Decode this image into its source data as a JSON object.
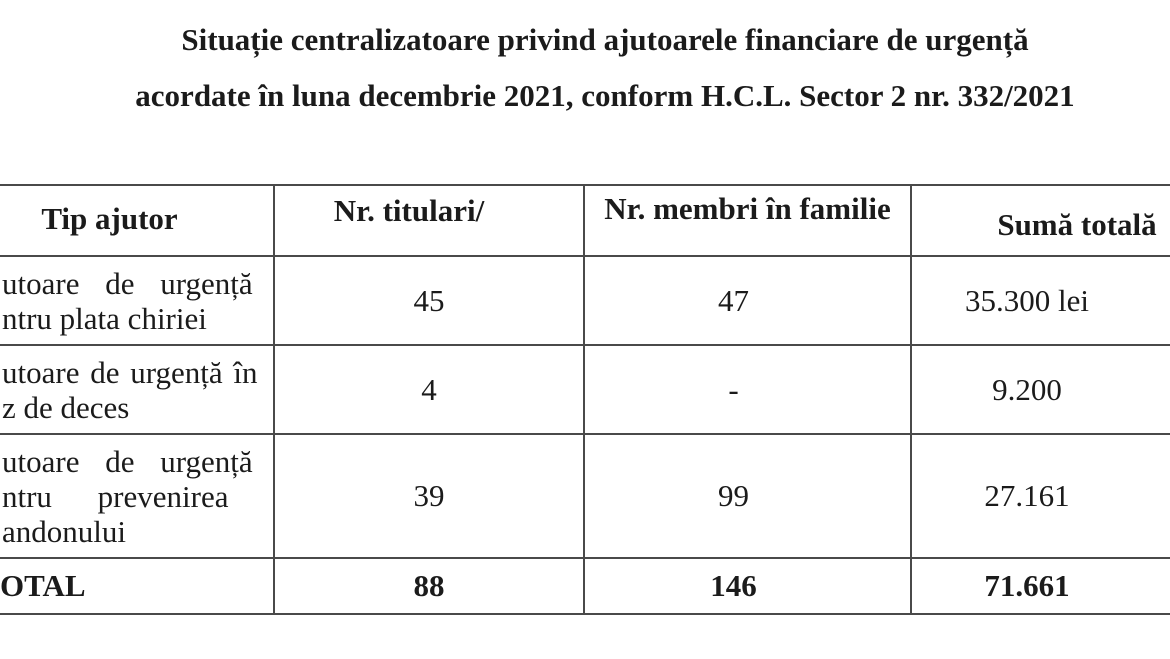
{
  "page": {
    "title_line1": "Situație centralizatoare privind ajutoarele financiare de urgență",
    "title_line2": "acordate în luna decembrie 2021, conform H.C.L. Sector 2 nr. 332/2021"
  },
  "table": {
    "headers": {
      "tip": "Tip ajutor",
      "titulari": "Nr. titulari/",
      "membri": "Nr. membri în familie",
      "suma": "Sumă totală"
    },
    "rows": [
      {
        "tip_lines": [
          "utoare de urgență",
          "ntru plata chiriei"
        ],
        "titulari": "45",
        "membri": "47",
        "suma": "35.300 lei"
      },
      {
        "tip_lines": [
          "utoare de urgență în",
          "z de deces"
        ],
        "titulari": "4",
        "membri": "-",
        "suma": "9.200"
      },
      {
        "tip_lines": [
          "utoare de urgență",
          "ntru prevenirea",
          "andonului"
        ],
        "titulari": "39",
        "membri": "99",
        "suma": "27.161"
      }
    ],
    "total_row": {
      "label": "OTAL",
      "titulari": "88",
      "membri": "146",
      "suma": "71.661"
    }
  }
}
